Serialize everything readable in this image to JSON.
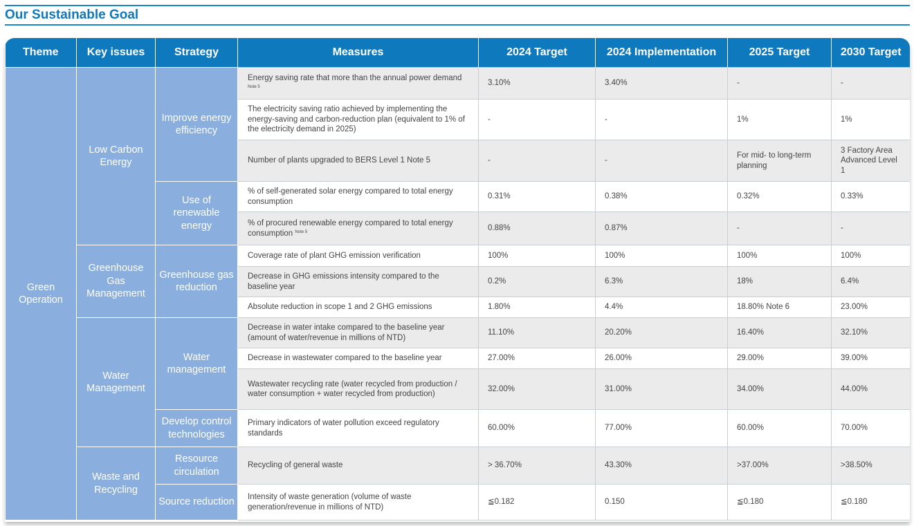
{
  "page": {
    "title": "Our Sustainable Goal"
  },
  "columns": [
    "Theme",
    "Key issues",
    "Strategy",
    "Measures",
    "2024 Target",
    "2024 Implementation",
    "2025 Target",
    "2030 Target"
  ],
  "theme": "Green Operation",
  "key_issues": [
    "Low Carbon Energy",
    "Greenhouse Gas Management",
    "Water Management",
    "Waste and Recycling"
  ],
  "strategies": [
    "Improve energy efficiency",
    "Use of renewable energy",
    "Greenhouse gas reduction",
    "Water management",
    "Develop control technologies",
    "Resource circulation",
    "Source reduction"
  ],
  "rows": [
    {
      "measure": "Energy saving rate that more than the annual power demand",
      "note": "Note 5",
      "t2024": "3.10%",
      "i2024": "3.40%",
      "t2025": "-",
      "t2030": "-"
    },
    {
      "measure": "The electricity saving ratio achieved by implementing the energy-saving and carbon-reduction plan (equivalent to 1% of the electricity demand in 2025)",
      "t2024": "-",
      "i2024": "-",
      "t2025": "1%",
      "t2030": "1%"
    },
    {
      "measure": "Number of plants upgraded to BERS Level 1  Note 5",
      "t2024": "-",
      "i2024": "-",
      "t2025": "For mid- to long-term planning",
      "t2030": "3 Factory Area Advanced Level 1"
    },
    {
      "measure": "% of self-generated solar energy compared to total energy consumption",
      "t2024": "0.31%",
      "i2024": "0.38%",
      "t2025": "0.32%",
      "t2030": "0.33%"
    },
    {
      "measure": "% of procured renewable energy compared to total energy consumption",
      "note": "Note 5",
      "t2024": "0.88%",
      "i2024": "0.87%",
      "t2025": "-",
      "t2030": "-"
    },
    {
      "measure": "Coverage rate of plant GHG emission verification",
      "t2024": "100%",
      "i2024": "100%",
      "t2025": "100%",
      "t2030": "100%"
    },
    {
      "measure": "Decrease in GHG emissions intensity compared to the baseline year",
      "t2024": "0.2%",
      "i2024": "6.3%",
      "t2025": "18%",
      "t2030": "6.4%"
    },
    {
      "measure": "Absolute reduction in scope 1 and 2 GHG emissions",
      "t2024": "1.80%",
      "i2024": "4.4%",
      "t2025": "18.80% Note 6",
      "t2030": "23.00%"
    },
    {
      "measure": "Decrease in water intake compared to the baseline year (amount of water/revenue in millions of NTD)",
      "t2024": "11.10%",
      "i2024": "20.20%",
      "t2025": "16.40%",
      "t2030": "32.10%"
    },
    {
      "measure": "Decrease in wastewater compared to the baseline year",
      "t2024": "27.00%",
      "i2024": "26.00%",
      "t2025": "29.00%",
      "t2030": "39.00%"
    },
    {
      "measure": "Wastewater recycling rate (water recycled from production / water consumption + water recycled from production)",
      "t2024": "32.00%",
      "i2024": "31.00%",
      "t2025": "34.00%",
      "t2030": "44.00%"
    },
    {
      "measure": "Primary indicators of water pollution exceed regulatory standards",
      "t2024": "60.00%",
      "i2024": "77.00%",
      "t2025": "60.00%",
      "t2030": "70.00%"
    },
    {
      "measure": "Recycling of general waste",
      "t2024": "> 36.70%",
      "i2024": "43.30%",
      "t2025": ">37.00%",
      "t2030": ">38.50%"
    },
    {
      "measure": "Intensity of waste generation (volume of waste generation/revenue in millions of NTD)",
      "t2024": "≦0.182",
      "i2024": "0.150",
      "t2025": "≦0.180",
      "t2030": "≦0.180"
    }
  ]
}
